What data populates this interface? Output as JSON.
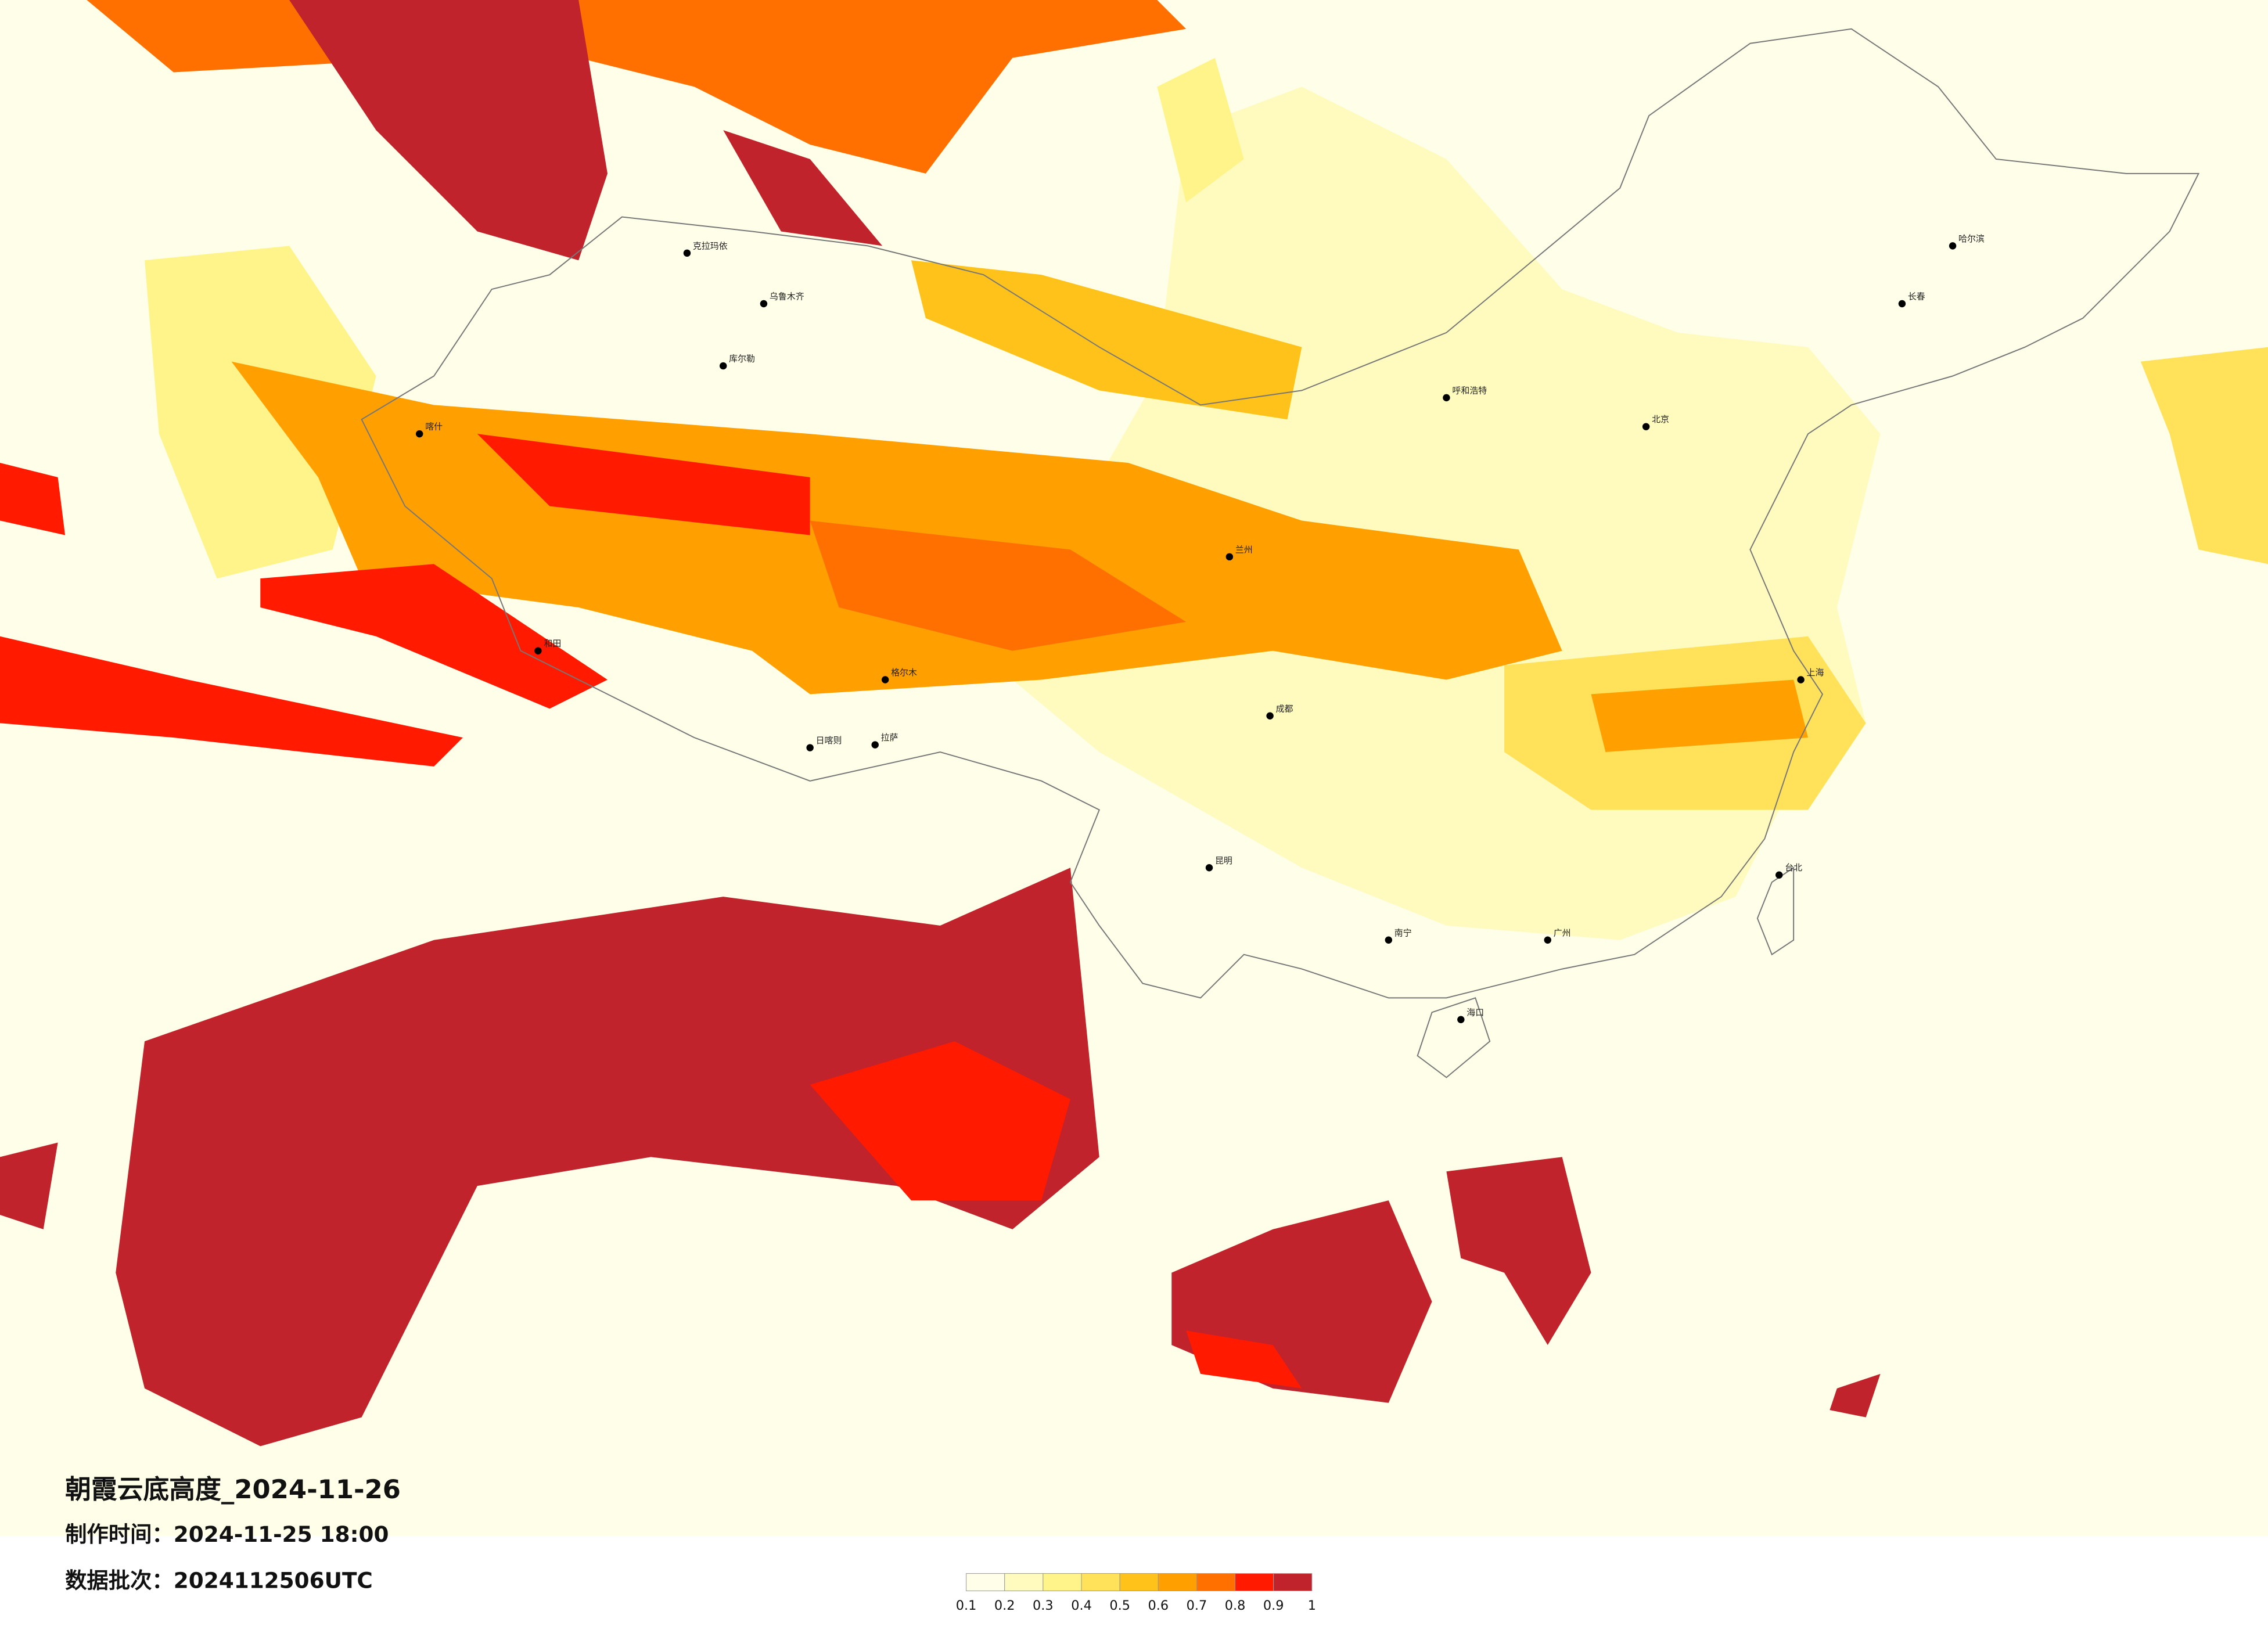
{
  "map": {
    "title": "朝霞云底高度_2024-11-26",
    "made_time": "制作时间：2024-11-25 18:00",
    "batch": "数据批次：2024112506UTC",
    "legend": {
      "bins": [
        0.1,
        0.2,
        0.3,
        0.4,
        0.5,
        0.6,
        0.7,
        0.8,
        0.9,
        1
      ],
      "colors": [
        "#fffee8",
        "#fffbbf",
        "#fff48a",
        "#ffe25a",
        "#ffc21a",
        "#ffa000",
        "#ff7000",
        "#ff1a00",
        "#c0232b"
      ]
    },
    "cities": [
      "克拉玛依",
      "乌鲁木齐",
      "库尔勒",
      "喀什",
      "和田",
      "格尔木",
      "拉萨",
      "日喀则",
      "兰州",
      "呼和浩特",
      "北京",
      "哈尔滨",
      "长春",
      "上海",
      "成都",
      "昆明",
      "南宁",
      "广州",
      "海口",
      "台北"
    ]
  }
}
